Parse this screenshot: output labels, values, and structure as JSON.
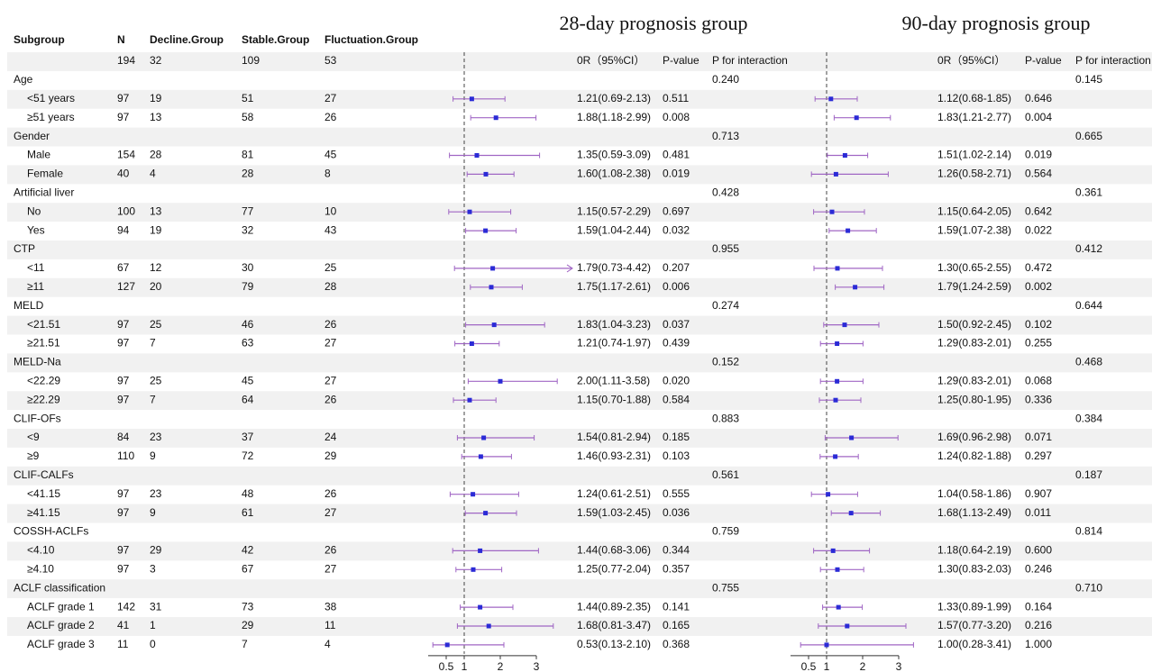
{
  "table": {
    "headers": [
      "Subgroup",
      "N",
      "Decline.Group",
      "Stable.Group",
      "Fluctuation.Group"
    ],
    "rows": [
      {
        "label": null,
        "values": [
          194,
          32,
          109,
          53
        ]
      },
      {
        "label": "Age",
        "values": null
      },
      {
        "label": "<51 years",
        "values": [
          97,
          19,
          51,
          27
        ]
      },
      {
        "label": "≥51 years",
        "values": [
          97,
          13,
          58,
          26
        ]
      },
      {
        "label": "Gender",
        "values": null
      },
      {
        "label": "Male",
        "values": [
          154,
          28,
          81,
          45
        ]
      },
      {
        "label": "Female",
        "values": [
          40,
          4,
          28,
          8
        ]
      },
      {
        "label": "Artificial liver",
        "values": null
      },
      {
        "label": "No",
        "values": [
          100,
          13,
          77,
          10
        ]
      },
      {
        "label": "Yes",
        "values": [
          94,
          19,
          32,
          43
        ]
      },
      {
        "label": "CTP",
        "values": null
      },
      {
        "label": "<11",
        "values": [
          67,
          12,
          30,
          25
        ]
      },
      {
        "label": "≥11",
        "values": [
          127,
          20,
          79,
          28
        ]
      },
      {
        "label": "MELD",
        "values": null
      },
      {
        "label": "<21.51",
        "values": [
          97,
          25,
          46,
          26
        ]
      },
      {
        "label": "≥21.51",
        "values": [
          97,
          7,
          63,
          27
        ]
      },
      {
        "label": "MELD-Na",
        "values": null
      },
      {
        "label": "<22.29",
        "values": [
          97,
          25,
          45,
          27
        ]
      },
      {
        "label": "≥22.29",
        "values": [
          97,
          7,
          64,
          26
        ]
      },
      {
        "label": "CLIF-OFs",
        "values": null
      },
      {
        "label": "<9",
        "values": [
          84,
          23,
          37,
          24
        ]
      },
      {
        "label": "≥9",
        "values": [
          110,
          9,
          72,
          29
        ]
      },
      {
        "label": "CLIF-CALFs",
        "values": null
      },
      {
        "label": "<41.15",
        "values": [
          97,
          23,
          48,
          26
        ]
      },
      {
        "label": "≥41.15",
        "values": [
          97,
          9,
          61,
          27
        ]
      },
      {
        "label": "COSSH-ACLFs",
        "values": null
      },
      {
        "label": "<4.10",
        "values": [
          97,
          29,
          42,
          26
        ]
      },
      {
        "label": "≥4.10",
        "values": [
          97,
          3,
          67,
          27
        ]
      },
      {
        "label": "ACLF classification",
        "values": null
      },
      {
        "label": "ACLF grade 1",
        "values": [
          142,
          31,
          73,
          38
        ]
      },
      {
        "label": "ACLF grade 2",
        "values": [
          41,
          1,
          29,
          11
        ]
      },
      {
        "label": "ACLF grade 3",
        "values": [
          11,
          0,
          7,
          4
        ]
      }
    ]
  },
  "chart_data": [
    {
      "type": "forest",
      "title": "28-day prognosis group",
      "columns": [
        "0R（95%CI）",
        "P-value",
        "P for interaction"
      ],
      "xlim": [
        0,
        4
      ],
      "xticks": [
        0.5,
        1,
        2,
        3
      ],
      "ref_line": 1,
      "color": "#a066c4",
      "point_color": "#2b2bd6",
      "estimates": [
        null,
        null,
        1.21,
        1.88,
        null,
        1.35,
        1.6,
        null,
        1.15,
        1.59,
        null,
        1.79,
        1.75,
        null,
        1.83,
        1.21,
        null,
        2.0,
        1.15,
        null,
        1.54,
        1.46,
        null,
        1.24,
        1.59,
        null,
        1.44,
        1.25,
        null,
        1.44,
        1.68,
        0.53
      ],
      "lower": [
        null,
        null,
        0.69,
        1.18,
        null,
        0.59,
        1.08,
        null,
        0.57,
        1.04,
        null,
        0.73,
        1.17,
        null,
        1.04,
        0.74,
        null,
        1.11,
        0.7,
        null,
        0.81,
        0.93,
        null,
        0.61,
        1.03,
        null,
        0.68,
        0.77,
        null,
        0.89,
        0.81,
        0.13
      ],
      "upper": [
        null,
        null,
        2.13,
        2.99,
        null,
        3.09,
        2.38,
        null,
        2.29,
        2.44,
        null,
        4.42,
        2.61,
        null,
        3.23,
        1.97,
        null,
        3.58,
        1.88,
        null,
        2.94,
        2.31,
        null,
        2.51,
        2.45,
        null,
        3.06,
        2.04,
        null,
        2.35,
        3.47,
        2.1
      ],
      "value_labels": [
        null,
        null,
        "1.21(0.69-2.13)",
        "1.88(1.18-2.99)",
        null,
        "1.35(0.59-3.09)",
        "1.60(1.08-2.38)",
        null,
        "1.15(0.57-2.29)",
        "1.59(1.04-2.44)",
        null,
        "1.79(0.73-4.42)",
        "1.75(1.17-2.61)",
        null,
        "1.83(1.04-3.23)",
        "1.21(0.74-1.97)",
        null,
        "2.00(1.11-3.58)",
        "1.15(0.70-1.88)",
        null,
        "1.54(0.81-2.94)",
        "1.46(0.93-2.31)",
        null,
        "1.24(0.61-2.51)",
        "1.59(1.03-2.45)",
        null,
        "1.44(0.68-3.06)",
        "1.25(0.77-2.04)",
        null,
        "1.44(0.89-2.35)",
        "1.68(0.81-3.47)",
        "0.53(0.13-2.10)"
      ],
      "p_values": [
        null,
        null,
        "0.511",
        "0.008",
        null,
        "0.481",
        "0.019",
        null,
        "0.697",
        "0.032",
        null,
        "0.207",
        "0.006",
        null,
        "0.037",
        "0.439",
        null,
        "0.020",
        "0.584",
        null,
        "0.185",
        "0.103",
        null,
        "0.555",
        "0.036",
        null,
        "0.344",
        "0.357",
        null,
        "0.141",
        "0.165",
        "0.368"
      ],
      "p_interaction": [
        null,
        "0.240",
        null,
        null,
        "0.713",
        null,
        null,
        "0.428",
        null,
        null,
        "0.955",
        null,
        null,
        "0.274",
        null,
        null,
        "0.152",
        null,
        null,
        "0.883",
        null,
        null,
        "0.561",
        null,
        null,
        "0.759",
        null,
        null,
        "0.755",
        null,
        null,
        null
      ]
    },
    {
      "type": "forest",
      "title": "90-day prognosis group",
      "columns": [
        "0R（95%CI）",
        "P-value",
        "P for interaction"
      ],
      "xlim": [
        0,
        4
      ],
      "xticks": [
        0.5,
        1,
        2,
        3
      ],
      "ref_line": 1,
      "color": "#a066c4",
      "point_color": "#2b2bd6",
      "estimates": [
        null,
        null,
        1.12,
        1.83,
        null,
        1.51,
        1.26,
        null,
        1.15,
        1.59,
        null,
        1.3,
        1.79,
        null,
        1.5,
        1.29,
        null,
        1.29,
        1.25,
        null,
        1.69,
        1.24,
        null,
        1.04,
        1.68,
        null,
        1.18,
        1.3,
        null,
        1.33,
        1.57,
        1.0
      ],
      "lower": [
        null,
        null,
        0.68,
        1.21,
        null,
        1.02,
        0.58,
        null,
        0.64,
        1.07,
        null,
        0.65,
        1.24,
        null,
        0.92,
        0.83,
        null,
        0.83,
        0.8,
        null,
        0.96,
        0.82,
        null,
        0.58,
        1.13,
        null,
        0.64,
        0.83,
        null,
        0.89,
        0.77,
        0.28
      ],
      "upper": [
        null,
        null,
        1.85,
        2.77,
        null,
        2.14,
        2.71,
        null,
        2.05,
        2.38,
        null,
        2.55,
        2.59,
        null,
        2.45,
        2.01,
        null,
        2.01,
        1.95,
        null,
        2.98,
        1.88,
        null,
        1.86,
        2.49,
        null,
        2.19,
        2.03,
        null,
        1.99,
        3.2,
        3.41
      ],
      "value_labels": [
        null,
        null,
        "1.12(0.68-1.85)",
        "1.83(1.21-2.77)",
        null,
        "1.51(1.02-2.14)",
        "1.26(0.58-2.71)",
        null,
        "1.15(0.64-2.05)",
        "1.59(1.07-2.38)",
        null,
        "1.30(0.65-2.55)",
        "1.79(1.24-2.59)",
        null,
        "1.50(0.92-2.45)",
        "1.29(0.83-2.01)",
        null,
        "1.29(0.83-2.01)",
        "1.25(0.80-1.95)",
        null,
        "1.69(0.96-2.98)",
        "1.24(0.82-1.88)",
        null,
        "1.04(0.58-1.86)",
        "1.68(1.13-2.49)",
        null,
        "1.18(0.64-2.19)",
        "1.30(0.83-2.03)",
        null,
        "1.33(0.89-1.99)",
        "1.57(0.77-3.20)",
        "1.00(0.28-3.41)"
      ],
      "p_values": [
        null,
        null,
        "0.646",
        "0.004",
        null,
        "0.019",
        "0.564",
        null,
        "0.642",
        "0.022",
        null,
        "0.472",
        "0.002",
        null,
        "0.102",
        "0.255",
        null,
        "0.068",
        "0.336",
        null,
        "0.071",
        "0.297",
        null,
        "0.907",
        "0.011",
        null,
        "0.600",
        "0.246",
        null,
        "0.164",
        "0.216",
        "1.000"
      ],
      "p_interaction": [
        null,
        "0.145",
        null,
        null,
        "0.665",
        null,
        null,
        "0.361",
        null,
        null,
        "0.412",
        null,
        null,
        "0.644",
        null,
        null,
        "0.468",
        null,
        null,
        "0.384",
        null,
        null,
        "0.187",
        null,
        null,
        "0.814",
        null,
        null,
        "0.710",
        null,
        null,
        null
      ]
    }
  ]
}
